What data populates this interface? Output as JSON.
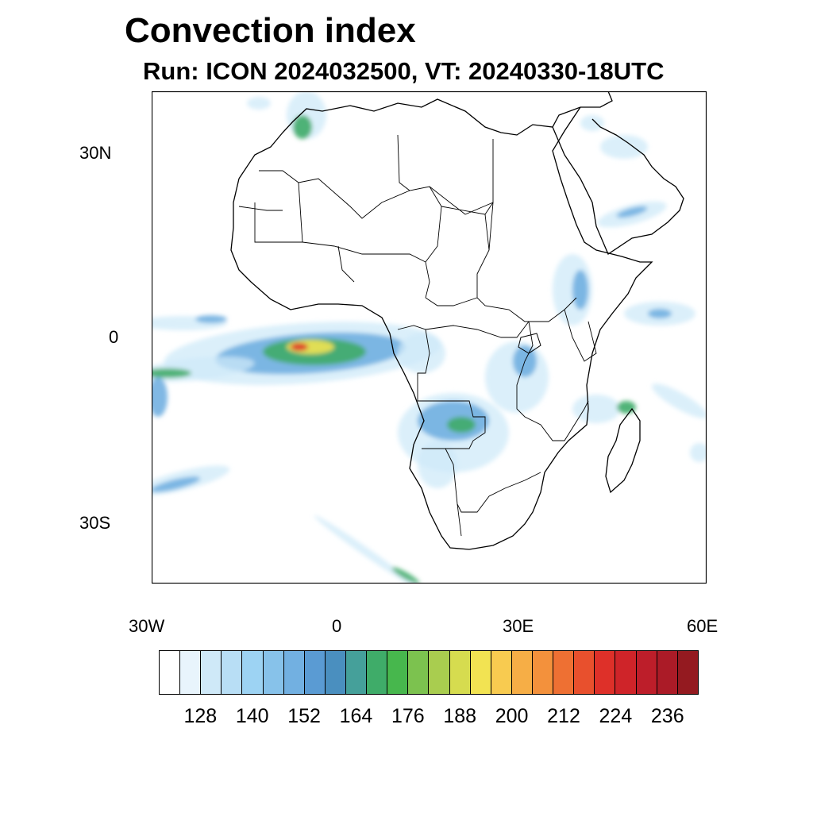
{
  "title": "Convection index",
  "subtitle": "Run: ICON 2024032500,  VT: 20240330-18UTC",
  "axes": {
    "lat_labels": [
      "30N",
      "0",
      "30S"
    ],
    "lon_labels": [
      "30W",
      "0",
      "30E",
      "60E"
    ]
  },
  "colorbar": {
    "labels": [
      "128",
      "140",
      "152",
      "164",
      "176",
      "188",
      "200",
      "212",
      "224",
      "236"
    ],
    "colors": [
      "#ffffff",
      "#e8f4fc",
      "#cfe9f8",
      "#b8def5",
      "#9dd3f3",
      "#87c2ea",
      "#72b0e1",
      "#5a9bd3",
      "#4a8fbf",
      "#45a09a",
      "#3fac69",
      "#47b74d",
      "#7cc24f",
      "#a9cd4f",
      "#d6dc4f",
      "#f2e352",
      "#f8cb50",
      "#f6ae46",
      "#f3913c",
      "#ee7033",
      "#e8502d",
      "#de3029",
      "#cf2429",
      "#bd1e2a",
      "#ab1b27",
      "#941a20"
    ]
  },
  "map_colors": {
    "low": "#cfe9f8",
    "mid": "#72b0e1",
    "high": "#3fac69",
    "peak": "#f2e352",
    "max": "#de3029"
  }
}
